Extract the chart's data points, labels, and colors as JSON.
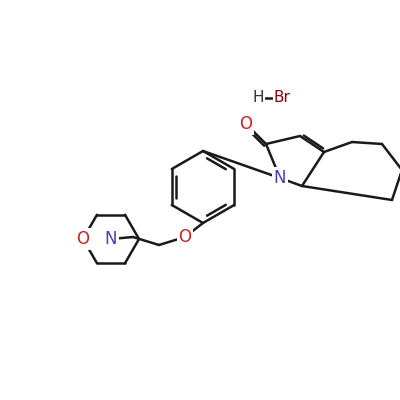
{
  "background_color": "#ffffff",
  "line_color": "#1a1a1a",
  "bond_width": 1.8,
  "atom_colors": {
    "N": "#4040bb",
    "O": "#cc2020",
    "Br": "#8b0000",
    "H": "#333333",
    "C": "#1a1a1a"
  },
  "font_size_atom": 11
}
